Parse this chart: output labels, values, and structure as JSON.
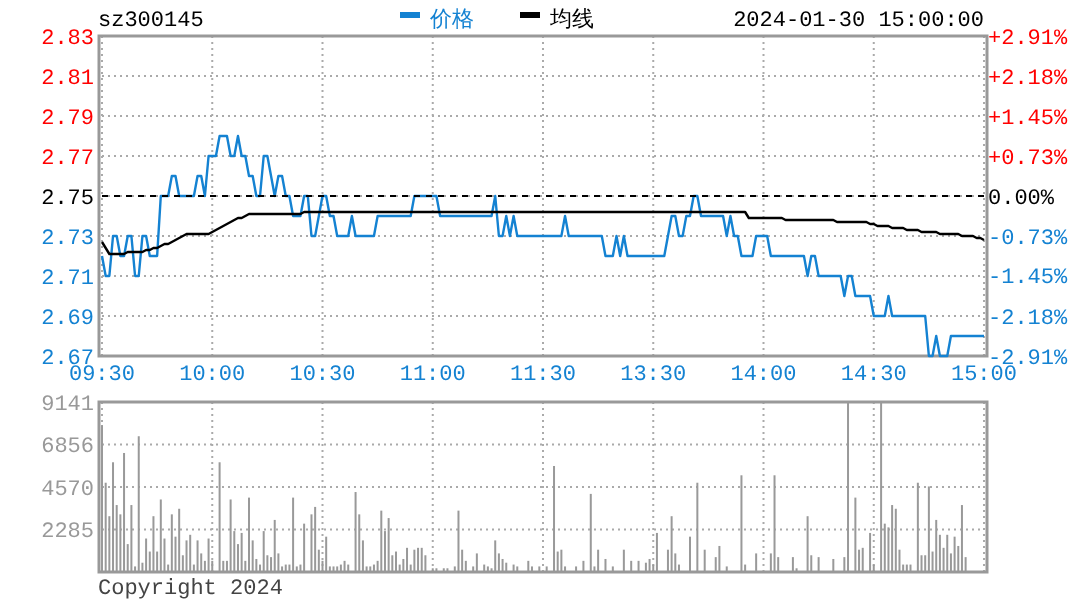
{
  "chart_data": [
    {
      "type": "line",
      "title": "sz300145",
      "annotations": [
        "2024-01-30 15:00:00"
      ],
      "legend": "top",
      "grid": true,
      "line_style": "solid",
      "categories": [
        "09:30",
        null,
        null,
        null,
        null,
        null,
        null,
        null,
        null,
        null,
        null,
        null,
        null,
        null,
        null,
        null,
        null,
        null,
        null,
        null,
        null,
        null,
        null,
        null,
        null,
        null,
        null,
        null,
        null,
        null,
        "10:00",
        null,
        null,
        null,
        null,
        null,
        null,
        null,
        null,
        null,
        null,
        null,
        null,
        null,
        null,
        null,
        null,
        null,
        null,
        null,
        null,
        null,
        null,
        null,
        null,
        null,
        null,
        null,
        null,
        null,
        "10:30",
        null,
        null,
        null,
        null,
        null,
        null,
        null,
        null,
        null,
        null,
        null,
        null,
        null,
        null,
        null,
        null,
        null,
        null,
        null,
        null,
        null,
        null,
        null,
        null,
        null,
        null,
        null,
        null,
        null,
        "11:00",
        null,
        null,
        null,
        null,
        null,
        null,
        null,
        null,
        null,
        null,
        null,
        null,
        null,
        null,
        null,
        null,
        null,
        null,
        null,
        null,
        null,
        null,
        null,
        null,
        null,
        null,
        null,
        null,
        null,
        "11:30",
        null,
        null,
        null,
        null,
        null,
        null,
        null,
        null,
        null,
        null,
        null,
        null,
        null,
        null,
        null,
        null,
        null,
        null,
        null,
        null,
        null,
        null,
        null,
        null,
        null,
        null,
        null,
        null,
        null,
        "13:30",
        null,
        null,
        null,
        null,
        null,
        null,
        null,
        null,
        null,
        null,
        null,
        null,
        null,
        null,
        null,
        null,
        null,
        null,
        null,
        null,
        null,
        null,
        null,
        null,
        null,
        null,
        null,
        null,
        null,
        "14:00",
        null,
        null,
        null,
        null,
        null,
        null,
        null,
        null,
        null,
        null,
        null,
        null,
        null,
        null,
        null,
        null,
        null,
        null,
        null,
        null,
        null,
        null,
        null,
        null,
        null,
        null,
        null,
        null,
        null,
        "14:30",
        null,
        null,
        null,
        null,
        null,
        null,
        null,
        null,
        null,
        null,
        null,
        null,
        null,
        null,
        null,
        null,
        null,
        null,
        null,
        null,
        null,
        null,
        null,
        null,
        null,
        null,
        null,
        null,
        null,
        "15:00"
      ],
      "ylim": [
        2.67,
        2.83
      ],
      "yticks": [
        2.67,
        2.69,
        2.71,
        2.73,
        2.75,
        2.77,
        2.79,
        2.81,
        2.83
      ],
      "y2lim": [
        -2.91,
        2.91
      ],
      "y2ticks": [
        {
          "value": -2.91,
          "label": "-2.91%"
        },
        {
          "value": -2.18,
          "label": "-2.18%"
        },
        {
          "value": -1.45,
          "label": "-1.45%"
        },
        {
          "value": -0.73,
          "label": "-0.73%"
        },
        {
          "value": 0,
          "label": "0.00%"
        },
        {
          "value": 0.73,
          "label": "+0.73%"
        },
        {
          "value": 1.45,
          "label": "+1.45%"
        },
        {
          "value": 2.18,
          "label": "+2.18%"
        },
        {
          "value": 2.91,
          "label": "+2.91%"
        }
      ],
      "ref_lines": [
        {
          "axis": "y",
          "value": 2.75,
          "color": "#000000",
          "line_style": "dashed"
        }
      ],
      "series": [
        {
          "name": "价格",
          "color": "#1482d2",
          "values": [
            2.72,
            2.71,
            2.71,
            2.73,
            2.73,
            2.72,
            2.72,
            2.73,
            2.73,
            2.71,
            2.71,
            2.73,
            2.73,
            2.72,
            2.72,
            2.72,
            2.75,
            2.75,
            2.75,
            2.76,
            2.76,
            2.75,
            2.75,
            2.75,
            2.75,
            2.75,
            2.76,
            2.76,
            2.75,
            2.77,
            2.77,
            2.77,
            2.78,
            2.78,
            2.78,
            2.77,
            2.77,
            2.78,
            2.77,
            2.77,
            2.76,
            2.76,
            2.75,
            2.75,
            2.77,
            2.77,
            2.76,
            2.75,
            2.76,
            2.76,
            2.75,
            2.75,
            2.74,
            2.74,
            2.74,
            2.75,
            2.75,
            2.73,
            2.73,
            2.74,
            2.75,
            2.75,
            2.74,
            2.74,
            2.73,
            2.73,
            2.73,
            2.73,
            2.74,
            2.73,
            2.73,
            2.73,
            2.73,
            2.73,
            2.73,
            2.74,
            2.74,
            2.74,
            2.74,
            2.74,
            2.74,
            2.74,
            2.74,
            2.74,
            2.74,
            2.75,
            2.75,
            2.75,
            2.75,
            2.75,
            2.75,
            2.75,
            2.74,
            2.74,
            2.74,
            2.74,
            2.74,
            2.74,
            2.74,
            2.74,
            2.74,
            2.74,
            2.74,
            2.74,
            2.74,
            2.74,
            2.74,
            2.75,
            2.73,
            2.73,
            2.74,
            2.73,
            2.74,
            2.73,
            2.73,
            2.73,
            2.73,
            2.73,
            2.73,
            2.73,
            2.73,
            2.73,
            2.73,
            2.73,
            2.73,
            2.73,
            2.74,
            2.73,
            2.73,
            2.73,
            2.73,
            2.73,
            2.73,
            2.73,
            2.73,
            2.73,
            2.73,
            2.72,
            2.72,
            2.72,
            2.73,
            2.72,
            2.73,
            2.72,
            2.72,
            2.72,
            2.72,
            2.72,
            2.72,
            2.72,
            2.72,
            2.72,
            2.72,
            2.72,
            2.73,
            2.74,
            2.74,
            2.73,
            2.73,
            2.74,
            2.74,
            2.75,
            2.75,
            2.74,
            2.74,
            2.74,
            2.74,
            2.74,
            2.74,
            2.74,
            2.73,
            2.74,
            2.73,
            2.73,
            2.72,
            2.72,
            2.72,
            2.72,
            2.73,
            2.73,
            2.73,
            2.73,
            2.72,
            2.72,
            2.72,
            2.72,
            2.72,
            2.72,
            2.72,
            2.72,
            2.72,
            2.72,
            2.71,
            2.72,
            2.72,
            2.71,
            2.71,
            2.71,
            2.71,
            2.71,
            2.71,
            2.71,
            2.7,
            2.71,
            2.71,
            2.7,
            2.7,
            2.7,
            2.7,
            2.7,
            2.69,
            2.69,
            2.69,
            2.69,
            2.7,
            2.69,
            2.69,
            2.69,
            2.69,
            2.69,
            2.69,
            2.69,
            2.69,
            2.69,
            2.69,
            2.67,
            2.67,
            2.68,
            2.67,
            2.67,
            2.67,
            2.68,
            2.68,
            2.68,
            2.68,
            2.68,
            2.68,
            2.68,
            2.68,
            2.68,
            2.68
          ]
        },
        {
          "name": "均线",
          "color": "#000000",
          "values": [
            2.727,
            2.724,
            2.721,
            2.721,
            2.721,
            2.721,
            2.721,
            2.722,
            2.722,
            2.722,
            2.722,
            2.722,
            2.723,
            2.723,
            2.724,
            2.724,
            2.725,
            2.726,
            2.726,
            2.727,
            2.728,
            2.729,
            2.73,
            2.731,
            2.731,
            2.731,
            2.731,
            2.731,
            2.731,
            2.731,
            2.732,
            2.733,
            2.734,
            2.735,
            2.736,
            2.737,
            2.738,
            2.739,
            2.739,
            2.74,
            2.741,
            2.741,
            2.741,
            2.741,
            2.741,
            2.741,
            2.741,
            2.741,
            2.741,
            2.741,
            2.741,
            2.741,
            2.741,
            2.741,
            2.741,
            2.742,
            2.742,
            2.742,
            2.742,
            2.742,
            2.742,
            2.742,
            2.742,
            2.742,
            2.742,
            2.742,
            2.742,
            2.742,
            2.742,
            2.742,
            2.742,
            2.742,
            2.742,
            2.742,
            2.742,
            2.742,
            2.742,
            2.742,
            2.742,
            2.742,
            2.742,
            2.742,
            2.742,
            2.742,
            2.742,
            2.742,
            2.742,
            2.742,
            2.742,
            2.742,
            2.742,
            2.742,
            2.742,
            2.742,
            2.742,
            2.742,
            2.742,
            2.742,
            2.742,
            2.742,
            2.742,
            2.742,
            2.742,
            2.742,
            2.742,
            2.742,
            2.742,
            2.742,
            2.742,
            2.742,
            2.742,
            2.742,
            2.742,
            2.742,
            2.742,
            2.742,
            2.742,
            2.742,
            2.742,
            2.742,
            2.742,
            2.742,
            2.742,
            2.742,
            2.742,
            2.742,
            2.742,
            2.742,
            2.742,
            2.742,
            2.742,
            2.742,
            2.742,
            2.742,
            2.742,
            2.742,
            2.742,
            2.742,
            2.742,
            2.742,
            2.742,
            2.742,
            2.742,
            2.742,
            2.742,
            2.742,
            2.742,
            2.742,
            2.742,
            2.742,
            2.742,
            2.742,
            2.742,
            2.742,
            2.742,
            2.742,
            2.742,
            2.742,
            2.742,
            2.742,
            2.742,
            2.742,
            2.742,
            2.742,
            2.742,
            2.742,
            2.742,
            2.742,
            2.742,
            2.742,
            2.742,
            2.742,
            2.742,
            2.742,
            2.742,
            2.742,
            2.739,
            2.739,
            2.739,
            2.739,
            2.739,
            2.739,
            2.739,
            2.739,
            2.739,
            2.739,
            2.738,
            2.738,
            2.738,
            2.738,
            2.738,
            2.738,
            2.738,
            2.738,
            2.738,
            2.738,
            2.738,
            2.738,
            2.738,
            2.738,
            2.737,
            2.737,
            2.737,
            2.737,
            2.737,
            2.737,
            2.737,
            2.737,
            2.737,
            2.736,
            2.736,
            2.735,
            2.735,
            2.735,
            2.735,
            2.734,
            2.734,
            2.734,
            2.734,
            2.733,
            2.733,
            2.733,
            2.733,
            2.732,
            2.732,
            2.732,
            2.732,
            2.732,
            2.731,
            2.731,
            2.731,
            2.731,
            2.731,
            2.731,
            2.73,
            2.73,
            2.73,
            2.73,
            2.729,
            2.729,
            2.728
          ]
        }
      ]
    },
    {
      "type": "bar",
      "color": "#999999",
      "grid": true,
      "annotations": [
        "Copyright 2024"
      ],
      "categories": [
        null,
        null,
        null,
        null,
        null,
        null,
        null,
        null,
        null,
        null,
        null,
        null,
        null,
        null,
        null,
        null,
        null,
        null,
        null,
        null,
        null,
        null,
        null,
        null,
        null,
        null,
        null,
        null,
        null,
        null,
        null,
        null,
        null,
        null,
        null,
        null,
        null,
        null,
        null,
        null,
        null,
        null,
        null,
        null,
        null,
        null,
        null,
        null,
        null,
        null,
        null,
        null,
        null,
        null,
        null,
        null,
        null,
        null,
        null,
        null,
        null,
        null,
        null,
        null,
        null,
        null,
        null,
        null,
        null,
        null,
        null,
        null,
        null,
        null,
        null,
        null,
        null,
        null,
        null,
        null,
        null,
        null,
        null,
        null,
        null,
        null,
        null,
        null,
        null,
        null,
        null,
        null,
        null,
        null,
        null,
        null,
        null,
        null,
        null,
        null,
        null,
        null,
        null,
        null,
        null,
        null,
        null,
        null,
        null,
        null,
        null,
        null,
        null,
        null,
        null,
        null,
        null,
        null,
        null,
        null,
        null,
        null,
        null,
        null,
        null,
        null,
        null,
        null,
        null,
        null,
        null,
        null,
        null,
        null,
        null,
        null,
        null,
        null,
        null,
        null,
        null,
        null,
        null,
        null,
        null,
        null,
        null,
        null,
        null,
        null,
        null,
        null,
        null,
        null,
        null,
        null,
        null,
        null,
        null,
        null,
        null,
        null,
        null,
        null,
        null,
        null,
        null,
        null,
        null,
        null,
        null,
        null,
        null,
        null,
        null,
        null,
        null,
        null,
        null,
        null,
        null,
        null,
        null,
        null,
        null,
        null,
        null,
        null,
        null,
        null,
        null,
        null,
        null,
        null,
        null,
        null,
        null,
        null,
        null,
        null,
        null,
        null,
        null,
        null,
        null,
        null,
        null,
        null,
        null,
        null,
        null,
        null,
        null,
        null,
        null,
        null,
        null,
        null,
        null,
        null,
        null,
        null,
        null,
        null,
        null,
        null,
        null,
        null,
        null,
        null,
        null,
        null,
        null,
        null,
        null,
        null,
        null,
        null,
        null,
        null,
        null
      ],
      "ylim": [
        0,
        9141
      ],
      "yticks": [
        2285,
        4570,
        6856,
        9141
      ],
      "values": [
        7900,
        4800,
        3000,
        5900,
        3600,
        3100,
        6400,
        1500,
        3600,
        300,
        7300,
        500,
        1800,
        1100,
        3000,
        1100,
        3900,
        1800,
        400,
        3100,
        1900,
        3400,
        900,
        1700,
        2000,
        400,
        1700,
        1000,
        600,
        1800,
        600,
        null,
        5900,
        600,
        600,
        3900,
        2200,
        1500,
        2100,
        600,
        4000,
        1700,
        700,
        400,
        2200,
        900,
        800,
        2800,
        1000,
        300,
        400,
        400,
        4000,
        300,
        400,
        2600,
        null,
        3100,
        3500,
        1200,
        600,
        1900,
        300,
        300,
        300,
        400,
        600,
        400,
        null,
        4300,
        3100,
        1700,
        300,
        300,
        400,
        600,
        3300,
        2200,
        2900,
        900,
        1100,
        400,
        700,
        1300,
        400,
        1200,
        1300,
        1300,
        900,
        null,
        200,
        200,
        null,
        200,
        200,
        null,
        300,
        3300,
        1200,
        600,
        null,
        300,
        1000,
        null,
        400,
        300,
        200,
        1700,
        1000,
        700,
        500,
        null,
        400,
        300,
        null,
        null,
        600,
        300,
        null,
        300,
        null,
        300,
        null,
        5700,
        1100,
        1200,
        300,
        null,
        null,
        300,
        null,
        600,
        null,
        4200,
        300,
        1200,
        null,
        700,
        null,
        300,
        null,
        null,
        1200,
        null,
        600,
        null,
        600,
        null,
        500,
        700,
        400,
        2100,
        null,
        null,
        1200,
        3000,
        1000,
        400,
        null,
        null,
        1900,
        null,
        4800,
        null,
        1200,
        null,
        null,
        800,
        1400,
        null,
        300,
        null,
        null,
        null,
        5200,
        400,
        null,
        null,
        1000,
        null,
        null,
        null,
        1000,
        5200,
        800,
        null,
        null,
        null,
        800,
        200,
        null,
        null,
        3000,
        900,
        null,
        800,
        null,
        null,
        null,
        700,
        null,
        null,
        800,
        9141,
        null,
        4000,
        1200,
        1300,
        null,
        2100,
        400,
        null,
        9141,
        2600,
        2400,
        3600,
        3400,
        1200,
        400,
        400,
        400,
        null,
        4800,
        900,
        900,
        4600,
        1100,
        2800,
        2000,
        1300,
        2000,
        1000,
        1900,
        1400,
        3600,
        800,
        null,
        null,
        null,
        null,
        null
      ]
    }
  ]
}
